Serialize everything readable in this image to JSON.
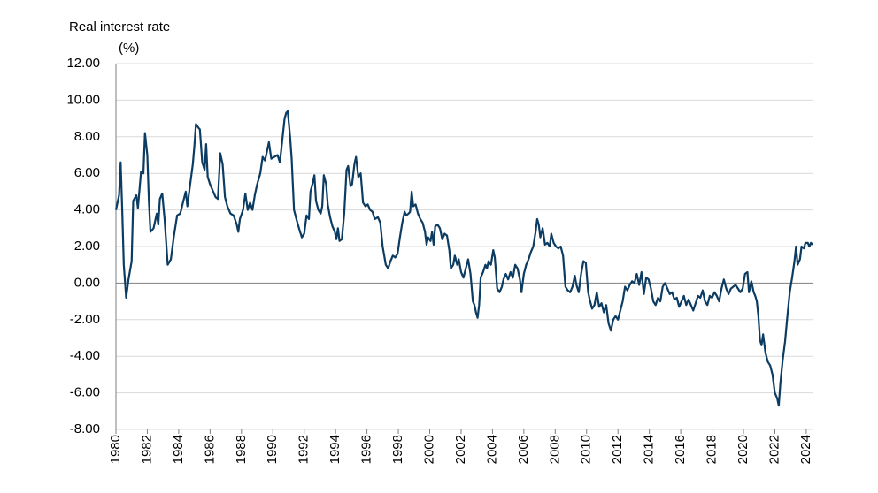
{
  "chart_data": {
    "type": "line",
    "title": "Real interest rate",
    "ylabel": "(%)",
    "x": [
      1980.0,
      1980.2,
      1980.3,
      1980.4,
      1980.5,
      1980.65,
      1980.8,
      1981.0,
      1981.1,
      1981.3,
      1981.4,
      1981.6,
      1981.75,
      1981.85,
      1982.0,
      1982.1,
      1982.2,
      1982.4,
      1982.6,
      1982.7,
      1982.8,
      1982.95,
      1983.1,
      1983.3,
      1983.5,
      1983.7,
      1983.9,
      1984.1,
      1984.3,
      1984.45,
      1984.55,
      1984.7,
      1984.9,
      1985.0,
      1985.1,
      1985.25,
      1985.35,
      1985.5,
      1985.65,
      1985.75,
      1985.85,
      1986.0,
      1986.2,
      1986.35,
      1986.5,
      1986.65,
      1986.8,
      1986.95,
      1987.1,
      1987.3,
      1987.5,
      1987.7,
      1987.8,
      1987.9,
      1988.1,
      1988.25,
      1988.4,
      1988.55,
      1988.7,
      1988.85,
      1989.0,
      1989.2,
      1989.35,
      1989.5,
      1989.6,
      1989.75,
      1989.9,
      1990.1,
      1990.3,
      1990.45,
      1990.6,
      1990.75,
      1990.85,
      1990.95,
      1991.1,
      1991.2,
      1991.35,
      1991.5,
      1991.7,
      1991.85,
      1992.0,
      1992.15,
      1992.3,
      1992.4,
      1992.55,
      1992.65,
      1992.75,
      1992.9,
      1993.05,
      1993.15,
      1993.25,
      1993.4,
      1993.5,
      1993.65,
      1993.8,
      1993.95,
      1994.05,
      1994.15,
      1994.25,
      1994.4,
      1994.55,
      1994.7,
      1994.8,
      1994.95,
      1995.05,
      1995.2,
      1995.3,
      1995.45,
      1995.6,
      1995.75,
      1995.9,
      1996.05,
      1996.2,
      1996.35,
      1996.5,
      1996.7,
      1996.85,
      1997.0,
      1997.2,
      1997.35,
      1997.5,
      1997.65,
      1997.8,
      1997.95,
      1998.1,
      1998.25,
      1998.4,
      1998.5,
      1998.65,
      1998.75,
      1998.85,
      1998.95,
      1999.1,
      1999.25,
      1999.4,
      1999.55,
      1999.7,
      1999.8,
      1999.9,
      2000.05,
      2000.15,
      2000.25,
      2000.35,
      2000.5,
      2000.65,
      2000.8,
      2000.95,
      2001.1,
      2001.25,
      2001.35,
      2001.5,
      2001.6,
      2001.75,
      2001.85,
      2002.0,
      2002.15,
      2002.3,
      2002.45,
      2002.6,
      2002.75,
      2002.85,
      2002.95,
      2003.05,
      2003.15,
      2003.25,
      2003.4,
      2003.55,
      2003.65,
      2003.75,
      2003.9,
      2004.05,
      2004.15,
      2004.3,
      2004.45,
      2004.6,
      2004.7,
      2004.85,
      2005.0,
      2005.15,
      2005.3,
      2005.45,
      2005.6,
      2005.75,
      2005.85,
      2006.0,
      2006.15,
      2006.3,
      2006.45,
      2006.6,
      2006.75,
      2006.85,
      2006.95,
      2007.05,
      2007.2,
      2007.35,
      2007.5,
      2007.65,
      2007.75,
      2007.9,
      2008.05,
      2008.2,
      2008.35,
      2008.5,
      2008.65,
      2008.8,
      2008.95,
      2009.1,
      2009.25,
      2009.35,
      2009.5,
      2009.65,
      2009.8,
      2009.95,
      2010.1,
      2010.2,
      2010.35,
      2010.5,
      2010.65,
      2010.8,
      2010.95,
      2011.1,
      2011.25,
      2011.4,
      2011.55,
      2011.7,
      2011.85,
      2012.0,
      2012.15,
      2012.3,
      2012.45,
      2012.6,
      2012.75,
      2012.9,
      2013.05,
      2013.2,
      2013.35,
      2013.5,
      2013.65,
      2013.8,
      2013.95,
      2014.1,
      2014.25,
      2014.4,
      2014.55,
      2014.7,
      2014.85,
      2015.0,
      2015.15,
      2015.3,
      2015.45,
      2015.6,
      2015.75,
      2015.9,
      2016.05,
      2016.2,
      2016.35,
      2016.5,
      2016.65,
      2016.8,
      2016.95,
      2017.1,
      2017.25,
      2017.4,
      2017.55,
      2017.7,
      2017.85,
      2018.0,
      2018.15,
      2018.3,
      2018.45,
      2018.6,
      2018.75,
      2018.9,
      2019.05,
      2019.2,
      2019.35,
      2019.5,
      2019.65,
      2019.8,
      2019.95,
      2020.1,
      2020.25,
      2020.35,
      2020.5,
      2020.65,
      2020.75,
      2020.85,
      2020.95,
      2021.05,
      2021.15,
      2021.25,
      2021.4,
      2021.55,
      2021.7,
      2021.85,
      2022.0,
      2022.15,
      2022.25,
      2022.35,
      2022.5,
      2022.65,
      2022.8,
      2022.95,
      2023.1,
      2023.25,
      2023.35,
      2023.45,
      2023.6,
      2023.7,
      2023.85,
      2023.95,
      2024.1,
      2024.2,
      2024.3,
      2024.4
    ],
    "series": [
      {
        "name": "Real interest rate",
        "color": "#0c3c62",
        "values": [
          4.0,
          4.8,
          6.6,
          4.0,
          1.0,
          -0.8,
          0.2,
          1.2,
          4.5,
          4.8,
          4.1,
          6.1,
          6.0,
          8.2,
          7.0,
          4.5,
          2.8,
          3.0,
          3.8,
          3.2,
          4.6,
          4.9,
          3.5,
          1.0,
          1.3,
          2.6,
          3.7,
          3.8,
          4.5,
          5.0,
          4.2,
          5.2,
          6.5,
          7.5,
          8.7,
          8.5,
          8.4,
          6.6,
          6.2,
          7.6,
          5.8,
          5.4,
          5.0,
          4.7,
          4.6,
          7.1,
          6.5,
          4.7,
          4.2,
          3.8,
          3.7,
          3.2,
          2.8,
          3.5,
          4.0,
          4.9,
          4.0,
          4.4,
          4.0,
          4.8,
          5.4,
          6.0,
          6.9,
          6.7,
          7.1,
          7.7,
          6.8,
          6.9,
          7.0,
          6.6,
          7.8,
          9.0,
          9.3,
          9.4,
          8.0,
          6.8,
          4.0,
          3.5,
          2.9,
          2.5,
          2.7,
          3.7,
          3.5,
          5.0,
          5.5,
          5.9,
          4.5,
          4.0,
          3.8,
          4.2,
          5.9,
          5.4,
          4.3,
          3.6,
          3.1,
          2.8,
          2.4,
          3.0,
          2.3,
          2.4,
          3.8,
          6.2,
          6.4,
          5.3,
          5.4,
          6.5,
          6.9,
          5.8,
          6.0,
          4.4,
          4.2,
          4.3,
          4.0,
          3.9,
          3.5,
          3.6,
          3.3,
          2.0,
          1.0,
          0.8,
          1.2,
          1.5,
          1.4,
          1.6,
          2.5,
          3.3,
          3.9,
          3.7,
          3.8,
          3.9,
          5.0,
          4.2,
          4.3,
          3.8,
          3.5,
          3.3,
          2.8,
          2.1,
          2.5,
          2.3,
          2.8,
          2.1,
          3.1,
          3.2,
          3.0,
          2.4,
          2.7,
          2.6,
          1.8,
          0.8,
          1.0,
          1.5,
          1.0,
          1.3,
          0.6,
          0.3,
          0.8,
          1.3,
          0.5,
          -1.0,
          -1.2,
          -1.6,
          -1.9,
          -1.2,
          0.3,
          0.6,
          1.0,
          0.8,
          1.2,
          1.0,
          1.8,
          1.4,
          -0.3,
          -0.5,
          -0.2,
          0.2,
          0.5,
          0.2,
          0.6,
          0.3,
          1.0,
          0.8,
          0.2,
          -0.5,
          0.5,
          1.0,
          1.3,
          1.7,
          2.0,
          2.8,
          3.5,
          3.2,
          2.5,
          3.0,
          2.1,
          2.2,
          2.0,
          2.7,
          2.2,
          2.0,
          1.9,
          2.0,
          1.5,
          -0.2,
          -0.4,
          -0.5,
          -0.2,
          0.4,
          -0.1,
          -0.5,
          0.5,
          1.2,
          1.1,
          -0.5,
          -0.9,
          -1.4,
          -1.2,
          -0.5,
          -1.3,
          -1.1,
          -1.6,
          -1.2,
          -2.2,
          -2.6,
          -2.0,
          -1.8,
          -2.0,
          -1.5,
          -1.0,
          -0.2,
          -0.4,
          -0.1,
          0.1,
          0.0,
          0.5,
          -0.1,
          0.6,
          -0.6,
          0.3,
          0.2,
          -0.3,
          -1.0,
          -1.2,
          -0.8,
          -1.0,
          -0.2,
          0.0,
          -0.3,
          -0.6,
          -0.5,
          -0.9,
          -0.8,
          -1.3,
          -1.0,
          -0.7,
          -1.2,
          -0.9,
          -1.2,
          -1.5,
          -1.1,
          -0.7,
          -0.8,
          -0.4,
          -1.0,
          -1.2,
          -0.7,
          -0.8,
          -0.5,
          -0.7,
          -1.0,
          -0.3,
          0.2,
          -0.3,
          -0.6,
          -0.3,
          -0.2,
          -0.1,
          -0.3,
          -0.5,
          -0.3,
          0.5,
          0.6,
          -0.5,
          0.1,
          -0.5,
          -0.7,
          -1.0,
          -1.8,
          -3.1,
          -3.4,
          -2.8,
          -3.8,
          -4.3,
          -4.5,
          -5.0,
          -6.0,
          -6.3,
          -6.7,
          -5.5,
          -4.2,
          -3.2,
          -1.8,
          -0.5,
          0.3,
          1.2,
          2.0,
          1.0,
          1.3,
          2.0,
          1.9,
          2.2,
          2.2,
          2.0,
          2.2,
          2.1
        ]
      }
    ],
    "xlim": [
      1980,
      2024.4
    ],
    "xticks": [
      1980,
      1982,
      1984,
      1986,
      1988,
      1990,
      1992,
      1994,
      1996,
      1998,
      2000,
      2002,
      2004,
      2006,
      2008,
      2010,
      2012,
      2014,
      2016,
      2018,
      2020,
      2022,
      2024
    ],
    "ylim": [
      -8,
      12
    ],
    "yticks": [
      {
        "value": -8,
        "label": "-8.00"
      },
      {
        "value": -6,
        "label": "-6.00"
      },
      {
        "value": -4,
        "label": "-4.00"
      },
      {
        "value": -2,
        "label": "-2.00"
      },
      {
        "value": 0,
        "label": "0.00"
      },
      {
        "value": 2,
        "label": "2.00"
      },
      {
        "value": 4,
        "label": "4.00"
      },
      {
        "value": 6,
        "label": "6.00"
      },
      {
        "value": 8,
        "label": "8.00"
      },
      {
        "value": 10,
        "label": "10.00"
      },
      {
        "value": 12,
        "label": "12.00"
      }
    ],
    "grid": true
  }
}
